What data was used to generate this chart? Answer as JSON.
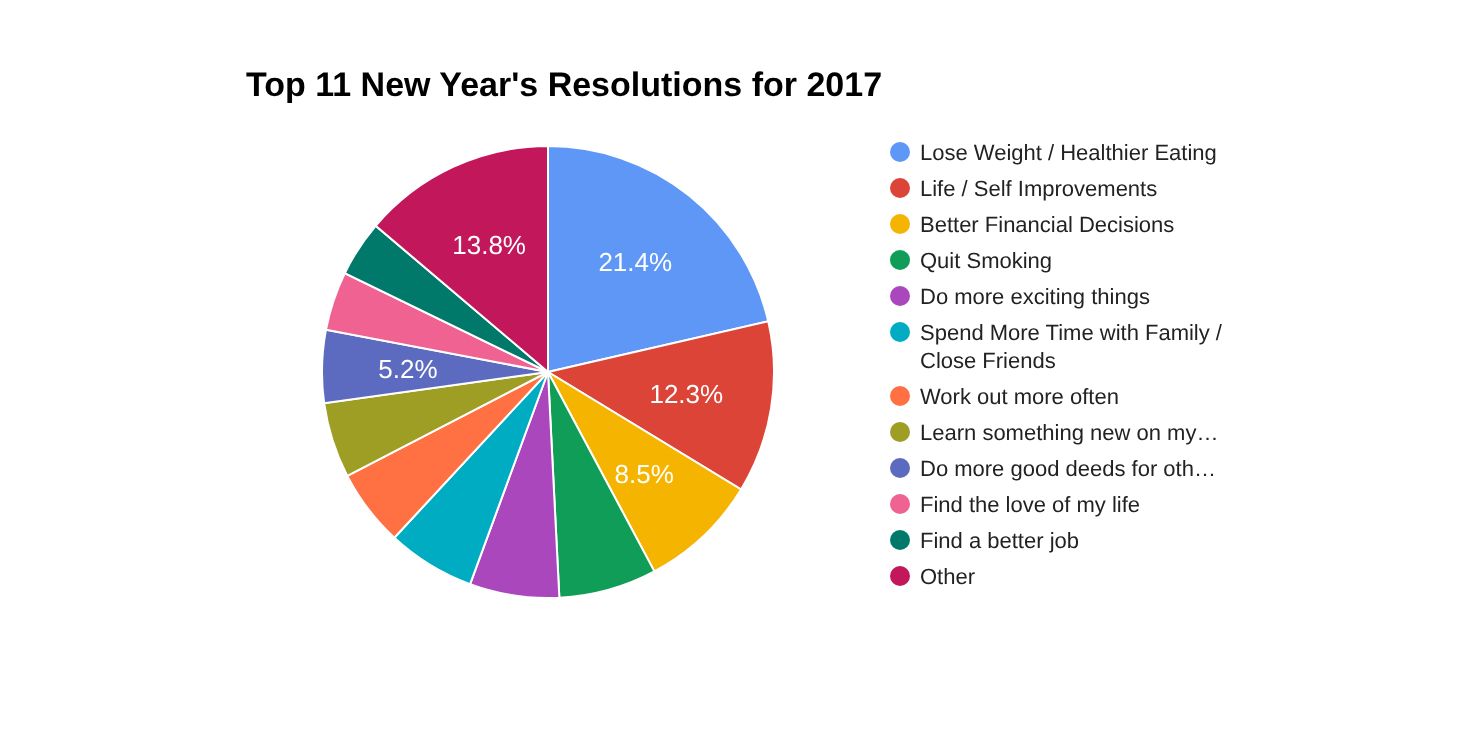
{
  "chart_data": {
    "type": "pie",
    "title": "Top 11 New Year's Resolutions for 2017",
    "categories": [
      "Lose Weight / Healthier Eating",
      "Life / Self Improvements",
      "Better Financial Decisions",
      "Quit Smoking",
      "Do more exciting things",
      "Spend More Time with Family / Close Friends",
      "Work out more often",
      "Learn something new on my…",
      "Do more good deeds for oth…",
      "Find the love of my life",
      "Find a better job",
      "Other"
    ],
    "values": [
      21.4,
      12.3,
      8.5,
      7.0,
      6.4,
      6.3,
      5.5,
      5.4,
      5.2,
      4.2,
      4.0,
      13.8
    ],
    "colors": [
      "#5e97f6",
      "#db4437",
      "#f4b400",
      "#0f9d58",
      "#ab47bc",
      "#00acc1",
      "#ff7043",
      "#9e9d24",
      "#5c6bc0",
      "#f06292",
      "#00796b",
      "#c2185b"
    ],
    "value_labels": [
      "21.4%",
      "12.3%",
      "8.5%",
      null,
      null,
      null,
      null,
      null,
      "5.2%",
      null,
      null,
      "13.8%"
    ],
    "legend": "right"
  }
}
